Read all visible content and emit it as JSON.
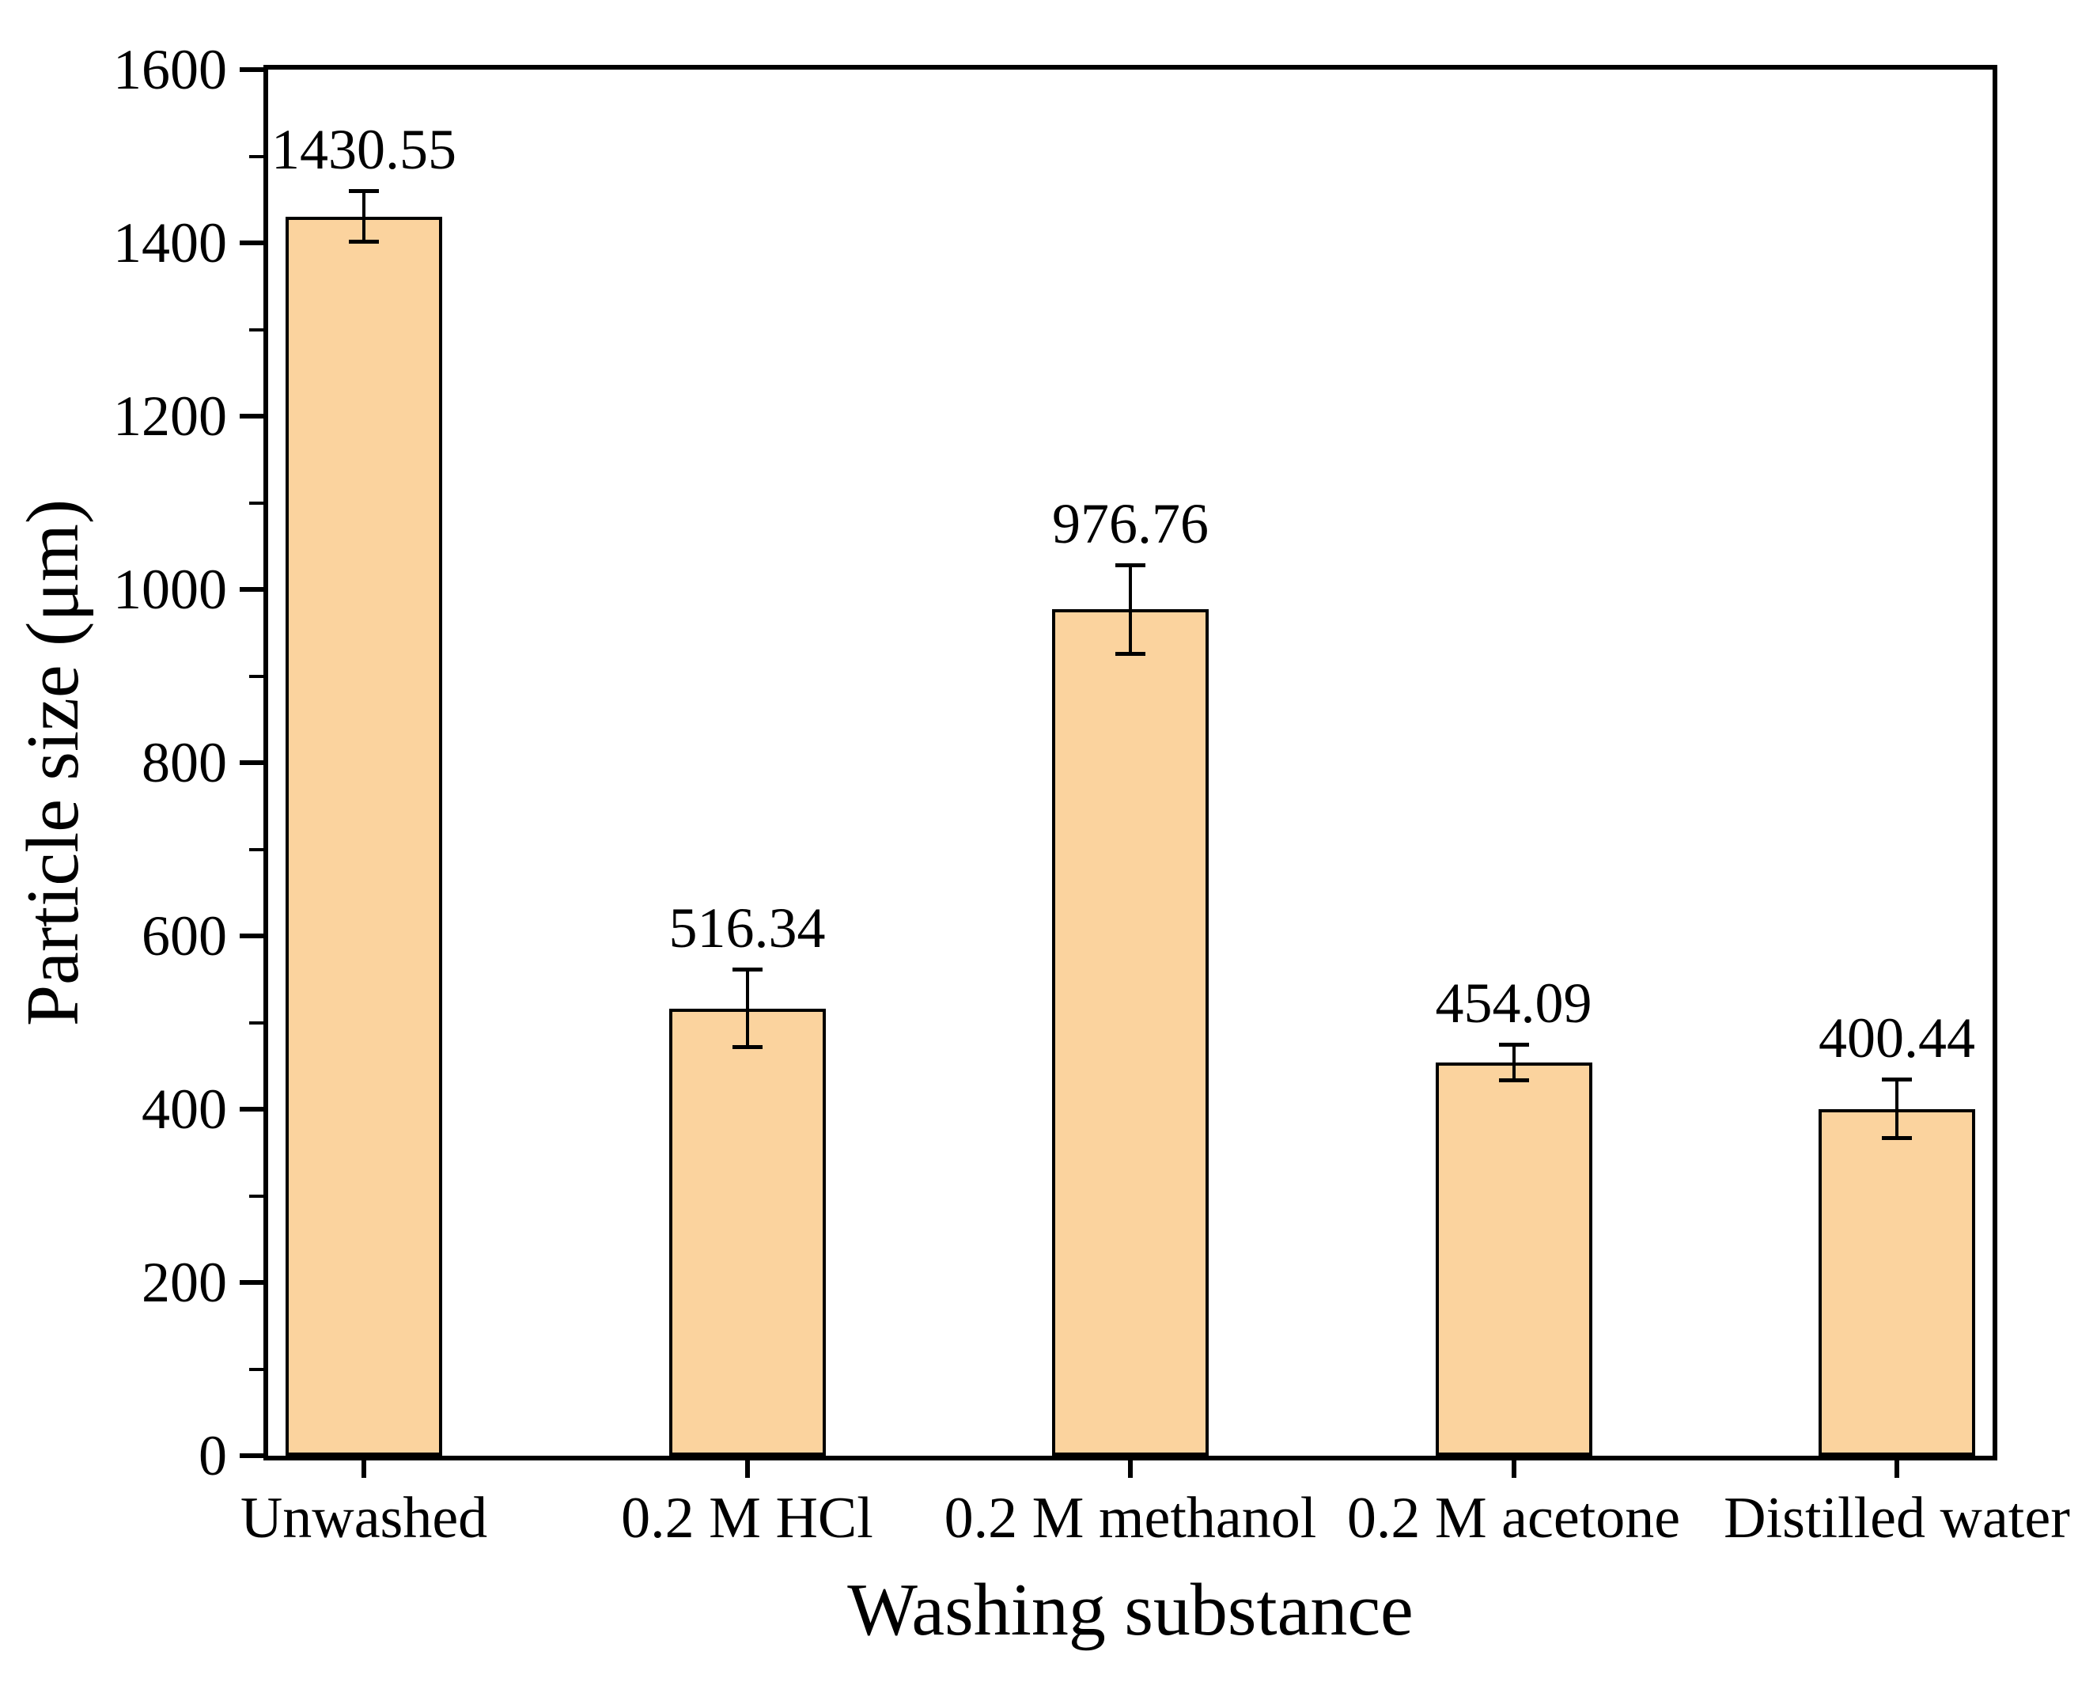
{
  "chart_data": {
    "type": "bar",
    "title": "",
    "xlabel": "Washing substance",
    "ylabel": "Particle size (μm)",
    "categories": [
      "Unwashed",
      "0.2 M HCl",
      "0.2 M methanol",
      "0.2 M acetone",
      "Distilled water"
    ],
    "values": [
      1430.55,
      516.34,
      976.76,
      454.09,
      400.44
    ],
    "value_labels": [
      "1430.55",
      "516.34",
      "976.76",
      "454.09",
      "400.44"
    ],
    "errors": [
      30,
      45,
      52,
      21,
      34
    ],
    "ylim": [
      0,
      1600
    ],
    "yticks": [
      0,
      200,
      400,
      600,
      800,
      1000,
      1200,
      1400,
      1600
    ],
    "ytick_labels": [
      "0",
      "200",
      "400",
      "600",
      "800",
      "1000",
      "1200",
      "1400",
      "1600"
    ],
    "minor_ytick_step": 100,
    "grid": false,
    "legend": null,
    "bar_color": "#fbd39e",
    "bar_border_color": "#000000",
    "axis_color": "#000000",
    "background_color": "#ffffff",
    "error_bar_color": "#000000"
  }
}
